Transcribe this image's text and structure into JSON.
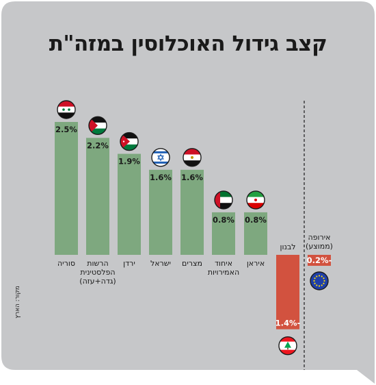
{
  "title": "קצב גידול האוכלוסין במזה\"ת",
  "source": "מקור: הארץ",
  "colors": {
    "background": "#c6c7c9",
    "positive": "#7ea87f",
    "negative": "#d2523f",
    "text": "#1a1a1a",
    "divider": "#333333"
  },
  "chart_data": {
    "type": "bar",
    "unit": "%",
    "series": [
      {
        "category": "סוריה",
        "value": 2.5,
        "label": "2.5%",
        "flag": "flag-syria"
      },
      {
        "category": "הרשות הפלסטינית (גדה+עזה)",
        "value": 2.2,
        "label": "2.2%",
        "flag": "flag-palestine"
      },
      {
        "category": "ירדן",
        "value": 1.9,
        "label": "1.9%",
        "flag": "flag-jordan"
      },
      {
        "category": "ישראל",
        "value": 1.6,
        "label": "1.6%",
        "flag": "flag-israel"
      },
      {
        "category": "מצרים",
        "value": 1.6,
        "label": "1.6%",
        "flag": "flag-egypt"
      },
      {
        "category": "איחוד האמירויות",
        "value": 0.8,
        "label": "0.8%",
        "flag": "flag-uae"
      },
      {
        "category": "איראן",
        "value": 0.8,
        "label": "0.8%",
        "flag": "flag-iran"
      },
      {
        "category": "לבנון",
        "value": -1.4,
        "label": "-1.4%",
        "flag": "flag-lebanon"
      },
      {
        "category": "אירופה (ממוצע)",
        "value": -0.2,
        "label": "-0.2%",
        "flag": "flag-eu"
      }
    ],
    "separated_category": "אירופה (ממוצע)"
  }
}
